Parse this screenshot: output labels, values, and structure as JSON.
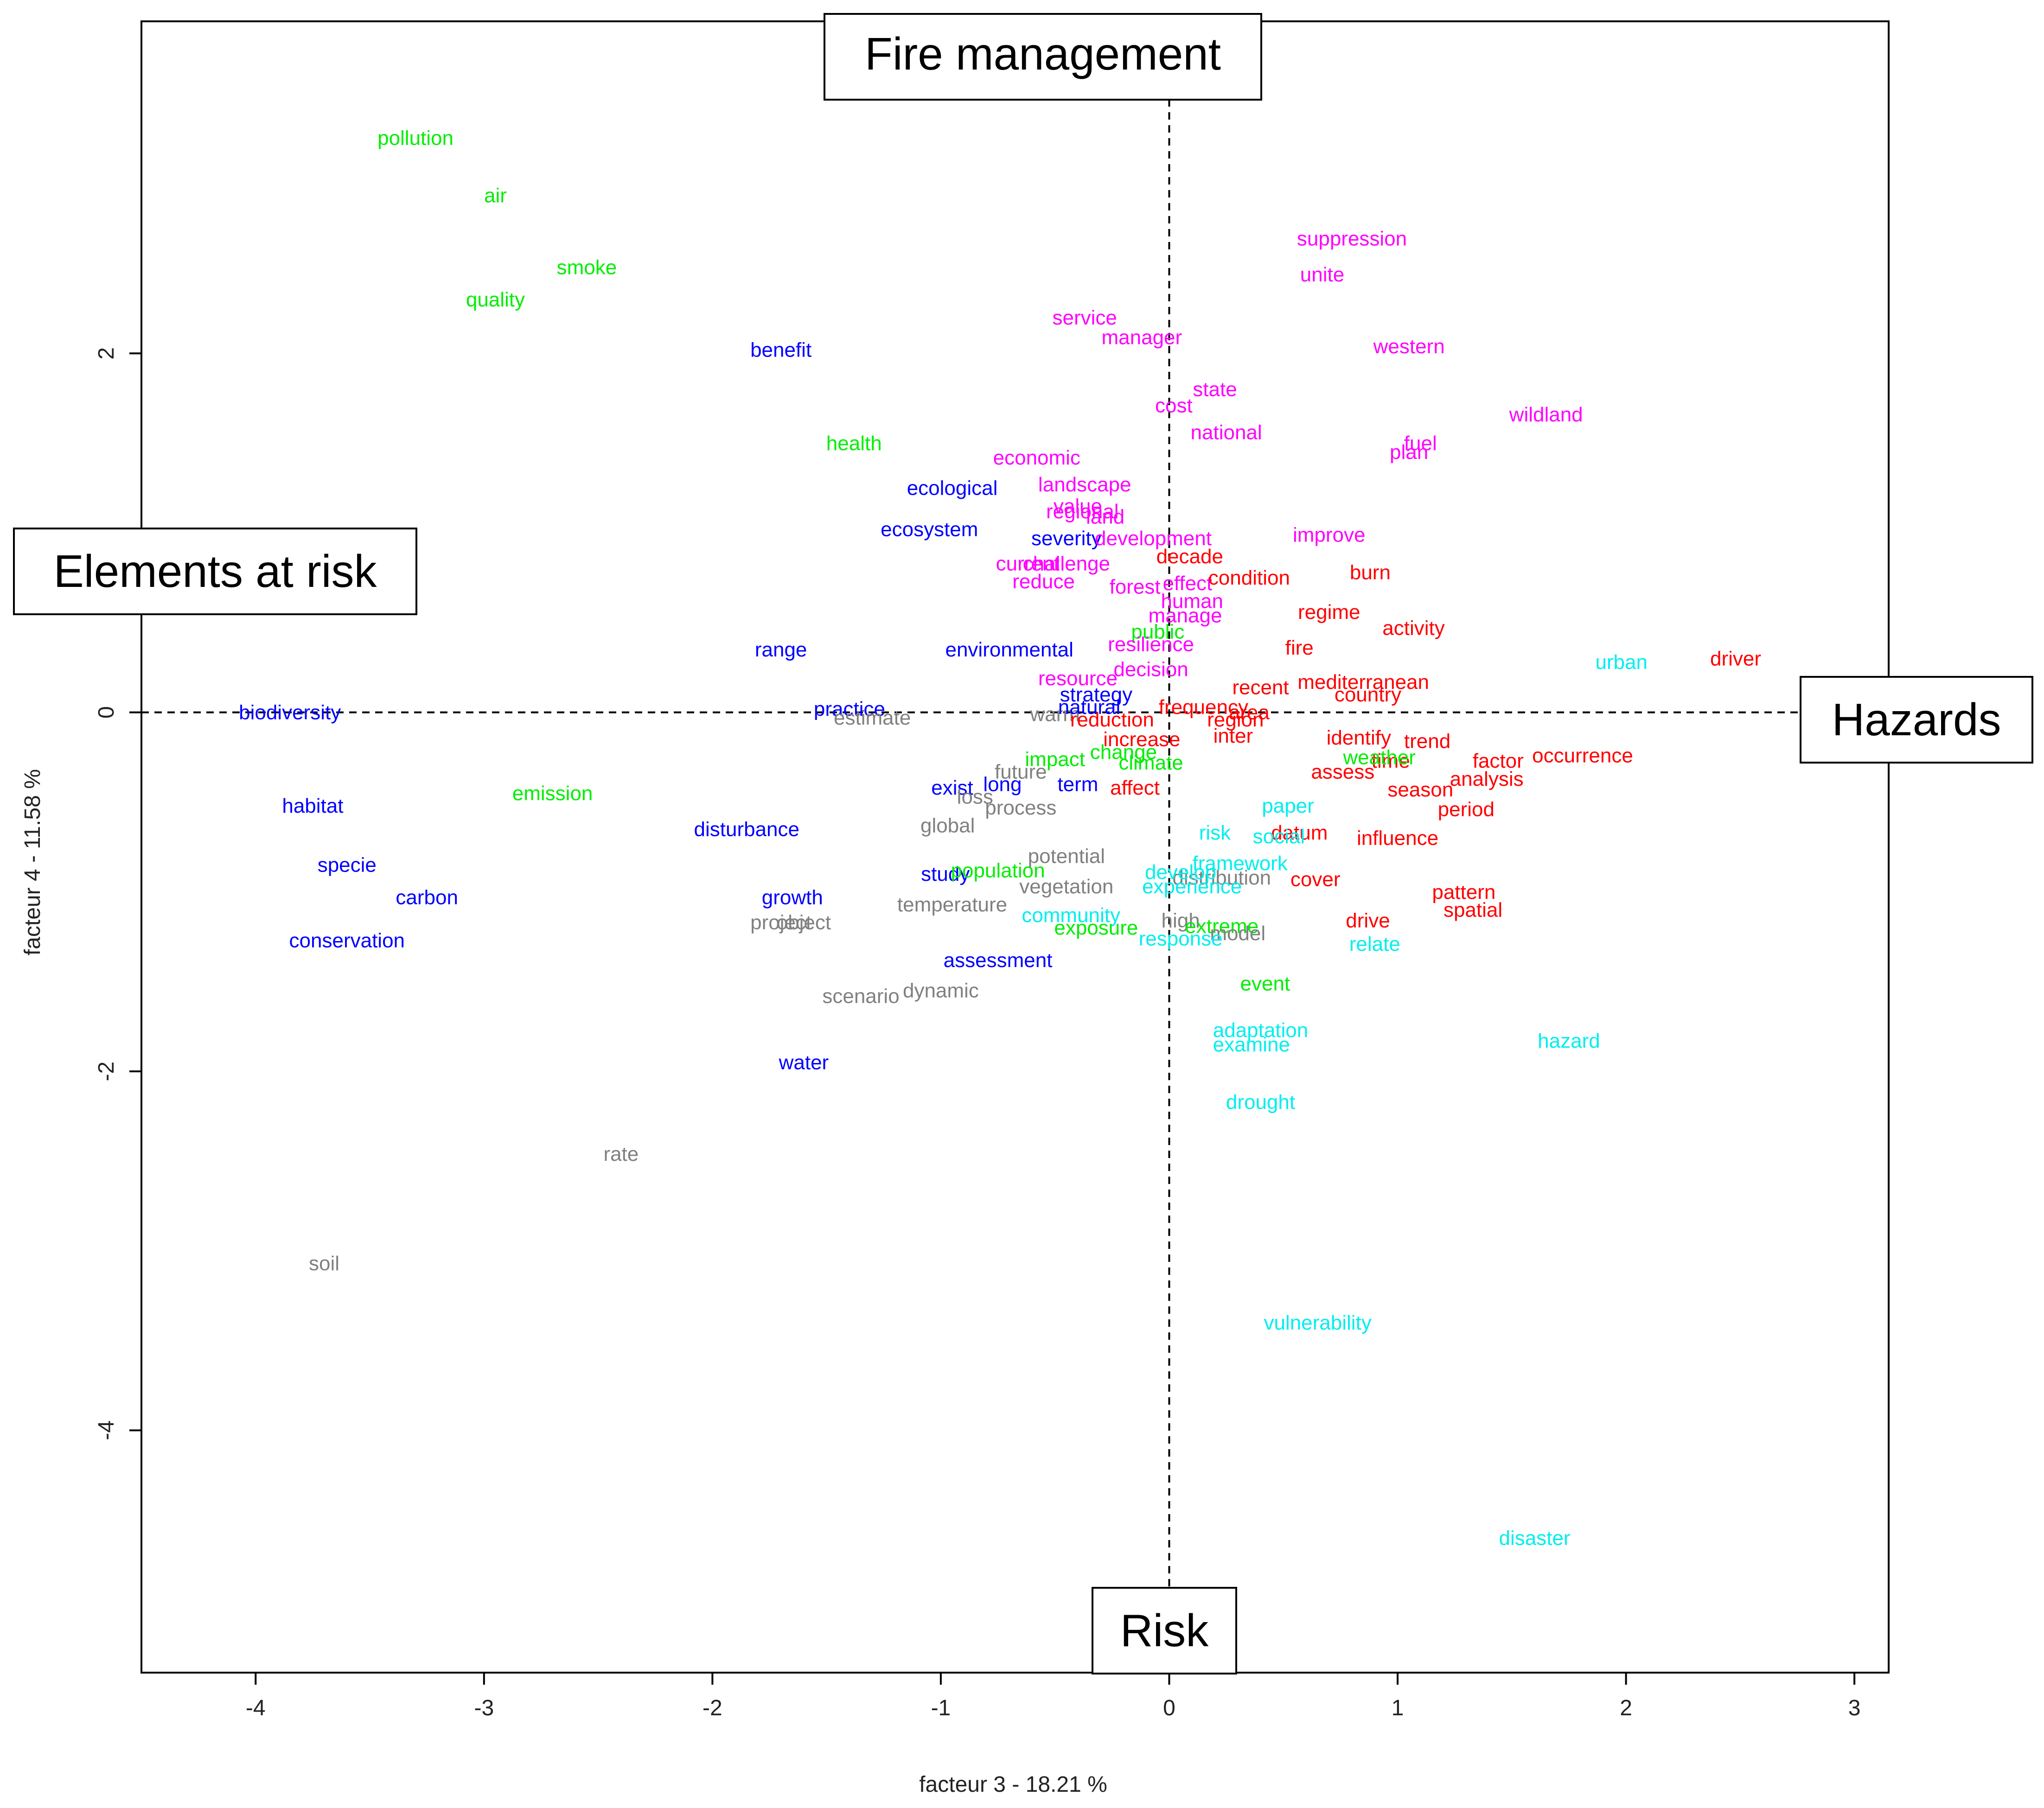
{
  "chart_data": {
    "type": "scatter",
    "title": "",
    "xlabel": "facteur  3  - 18.21 %",
    "ylabel": "facteur  4  - 11.58 %",
    "xlim": [
      -4.5,
      3.15
    ],
    "ylim": [
      -5.35,
      3.85
    ],
    "x_ticks": [
      -4,
      -3,
      -2,
      -1,
      0,
      1,
      2,
      3
    ],
    "y_ticks": [
      -4,
      -2,
      0,
      2
    ],
    "reference_lines": {
      "x": 0,
      "y": 0,
      "style": "dashed"
    },
    "annotations": {
      "top": "Fire management",
      "left": "Elements at risk",
      "right": "Hazards",
      "bottom": "Risk"
    },
    "group_colors": {
      "red": "#ff0000",
      "magenta": "#ff00ff",
      "blue": "#0000ff",
      "green": "#00ee00",
      "cyan": "#00eeee",
      "gray": "#808080"
    },
    "points": [
      {
        "t": "pollution",
        "x": -3.3,
        "y": 3.2,
        "g": "green"
      },
      {
        "t": "air",
        "x": -2.95,
        "y": 2.88,
        "g": "green"
      },
      {
        "t": "smoke",
        "x": -2.55,
        "y": 2.48,
        "g": "green"
      },
      {
        "t": "quality",
        "x": -2.95,
        "y": 2.3,
        "g": "green"
      },
      {
        "t": "benefit",
        "x": -1.7,
        "y": 2.02,
        "g": "blue"
      },
      {
        "t": "health",
        "x": -1.38,
        "y": 1.5,
        "g": "green"
      },
      {
        "t": "ecological",
        "x": -0.95,
        "y": 1.25,
        "g": "blue"
      },
      {
        "t": "ecosystem",
        "x": -1.05,
        "y": 1.02,
        "g": "blue"
      },
      {
        "t": "severity",
        "x": -0.45,
        "y": 0.97,
        "g": "blue"
      },
      {
        "t": "range",
        "x": -1.7,
        "y": 0.35,
        "g": "blue"
      },
      {
        "t": "environmental",
        "x": -0.7,
        "y": 0.35,
        "g": "blue"
      },
      {
        "t": "biodiversity",
        "x": -3.85,
        "y": 0.0,
        "g": "blue"
      },
      {
        "t": "practice",
        "x": -1.4,
        "y": 0.02,
        "g": "blue"
      },
      {
        "t": "estimate",
        "x": -1.3,
        "y": -0.03,
        "g": "gray"
      },
      {
        "t": "warm",
        "x": -0.5,
        "y": -0.01,
        "g": "gray"
      },
      {
        "t": "natural",
        "x": -0.35,
        "y": 0.03,
        "g": "blue"
      },
      {
        "t": "strategy",
        "x": -0.32,
        "y": 0.1,
        "g": "blue"
      },
      {
        "t": "habitat",
        "x": -3.75,
        "y": -0.52,
        "g": "blue"
      },
      {
        "t": "emission",
        "x": -2.7,
        "y": -0.45,
        "g": "green"
      },
      {
        "t": "disturbance",
        "x": -1.85,
        "y": -0.65,
        "g": "blue"
      },
      {
        "t": "exist",
        "x": -0.95,
        "y": -0.42,
        "g": "blue"
      },
      {
        "t": "long",
        "x": -0.73,
        "y": -0.4,
        "g": "blue"
      },
      {
        "t": "term",
        "x": -0.4,
        "y": -0.4,
        "g": "blue"
      },
      {
        "t": "loss",
        "x": -0.85,
        "y": -0.47,
        "g": "gray"
      },
      {
        "t": "future",
        "x": -0.65,
        "y": -0.33,
        "g": "gray"
      },
      {
        "t": "process",
        "x": -0.65,
        "y": -0.53,
        "g": "gray"
      },
      {
        "t": "global",
        "x": -0.97,
        "y": -0.63,
        "g": "gray"
      },
      {
        "t": "specie",
        "x": -3.6,
        "y": -0.85,
        "g": "blue"
      },
      {
        "t": "carbon",
        "x": -3.25,
        "y": -1.03,
        "g": "blue"
      },
      {
        "t": "conservation",
        "x": -3.6,
        "y": -1.27,
        "g": "blue"
      },
      {
        "t": "growth",
        "x": -1.65,
        "y": -1.03,
        "g": "blue"
      },
      {
        "t": "project",
        "x": -1.7,
        "y": -1.17,
        "g": "gray"
      },
      {
        "t": "object",
        "x": -1.6,
        "y": -1.17,
        "g": "gray"
      },
      {
        "t": "study",
        "x": -0.98,
        "y": -0.9,
        "g": "blue"
      },
      {
        "t": "population",
        "x": -0.75,
        "y": -0.88,
        "g": "green"
      },
      {
        "t": "temperature",
        "x": -0.95,
        "y": -1.07,
        "g": "gray"
      },
      {
        "t": "potential",
        "x": -0.45,
        "y": -0.8,
        "g": "gray"
      },
      {
        "t": "vegetation",
        "x": -0.45,
        "y": -0.97,
        "g": "gray"
      },
      {
        "t": "assessment",
        "x": -0.75,
        "y": -1.38,
        "g": "blue"
      },
      {
        "t": "scenario",
        "x": -1.35,
        "y": -1.58,
        "g": "gray"
      },
      {
        "t": "dynamic",
        "x": -1.0,
        "y": -1.55,
        "g": "gray"
      },
      {
        "t": "water",
        "x": -1.6,
        "y": -1.95,
        "g": "blue"
      },
      {
        "t": "rate",
        "x": -2.4,
        "y": -2.46,
        "g": "gray"
      },
      {
        "t": "soil",
        "x": -3.7,
        "y": -3.07,
        "g": "gray"
      },
      {
        "t": "service",
        "x": -0.37,
        "y": 2.2,
        "g": "magenta"
      },
      {
        "t": "manager",
        "x": -0.12,
        "y": 2.09,
        "g": "magenta"
      },
      {
        "t": "state",
        "x": 0.2,
        "y": 1.8,
        "g": "magenta"
      },
      {
        "t": "cost",
        "x": 0.02,
        "y": 1.71,
        "g": "magenta"
      },
      {
        "t": "national",
        "x": 0.25,
        "y": 1.56,
        "g": "magenta"
      },
      {
        "t": "economic",
        "x": -0.58,
        "y": 1.42,
        "g": "magenta"
      },
      {
        "t": "landscape",
        "x": -0.37,
        "y": 1.27,
        "g": "magenta"
      },
      {
        "t": "value",
        "x": -0.4,
        "y": 1.15,
        "g": "magenta"
      },
      {
        "t": "regional",
        "x": -0.38,
        "y": 1.12,
        "g": "magenta"
      },
      {
        "t": "land",
        "x": -0.28,
        "y": 1.09,
        "g": "magenta"
      },
      {
        "t": "development",
        "x": -0.07,
        "y": 0.97,
        "g": "magenta"
      },
      {
        "t": "current",
        "x": -0.62,
        "y": 0.83,
        "g": "magenta"
      },
      {
        "t": "challenge",
        "x": -0.45,
        "y": 0.83,
        "g": "magenta"
      },
      {
        "t": "reduce",
        "x": -0.55,
        "y": 0.73,
        "g": "magenta"
      },
      {
        "t": "forest",
        "x": -0.15,
        "y": 0.7,
        "g": "magenta"
      },
      {
        "t": "effect",
        "x": 0.08,
        "y": 0.72,
        "g": "magenta"
      },
      {
        "t": "human",
        "x": 0.1,
        "y": 0.62,
        "g": "magenta"
      },
      {
        "t": "manage",
        "x": 0.07,
        "y": 0.54,
        "g": "magenta"
      },
      {
        "t": "public",
        "x": -0.05,
        "y": 0.45,
        "g": "green"
      },
      {
        "t": "resilience",
        "x": -0.08,
        "y": 0.38,
        "g": "magenta"
      },
      {
        "t": "decision",
        "x": -0.08,
        "y": 0.24,
        "g": "magenta"
      },
      {
        "t": "resource",
        "x": -0.4,
        "y": 0.19,
        "g": "magenta"
      },
      {
        "t": "suppression",
        "x": 0.8,
        "y": 2.64,
        "g": "magenta"
      },
      {
        "t": "unite",
        "x": 0.67,
        "y": 2.44,
        "g": "magenta"
      },
      {
        "t": "western",
        "x": 1.05,
        "y": 2.04,
        "g": "magenta"
      },
      {
        "t": "wildland",
        "x": 1.65,
        "y": 1.66,
        "g": "magenta"
      },
      {
        "t": "fuel",
        "x": 1.1,
        "y": 1.5,
        "g": "magenta"
      },
      {
        "t": "plan",
        "x": 1.05,
        "y": 1.45,
        "g": "magenta"
      },
      {
        "t": "improve",
        "x": 0.7,
        "y": 0.99,
        "g": "magenta"
      },
      {
        "t": "decade",
        "x": 0.09,
        "y": 0.87,
        "g": "red"
      },
      {
        "t": "condition",
        "x": 0.35,
        "y": 0.75,
        "g": "red"
      },
      {
        "t": "burn",
        "x": 0.88,
        "y": 0.78,
        "g": "red"
      },
      {
        "t": "regime",
        "x": 0.7,
        "y": 0.56,
        "g": "red"
      },
      {
        "t": "activity",
        "x": 1.07,
        "y": 0.47,
        "g": "red"
      },
      {
        "t": "fire",
        "x": 0.57,
        "y": 0.36,
        "g": "red"
      },
      {
        "t": "recent",
        "x": 0.4,
        "y": 0.14,
        "g": "red"
      },
      {
        "t": "mediterranean",
        "x": 0.85,
        "y": 0.17,
        "g": "red"
      },
      {
        "t": "country",
        "x": 0.87,
        "y": 0.1,
        "g": "red"
      },
      {
        "t": "frequency",
        "x": 0.15,
        "y": 0.03,
        "g": "red"
      },
      {
        "t": "area",
        "x": 0.35,
        "y": 0.0,
        "g": "red"
      },
      {
        "t": "region",
        "x": 0.29,
        "y": -0.04,
        "g": "red"
      },
      {
        "t": "inter",
        "x": 0.28,
        "y": -0.13,
        "g": "red"
      },
      {
        "t": "reduction",
        "x": -0.25,
        "y": -0.04,
        "g": "red"
      },
      {
        "t": "increase",
        "x": -0.12,
        "y": -0.15,
        "g": "red"
      },
      {
        "t": "affect",
        "x": -0.15,
        "y": -0.42,
        "g": "red"
      },
      {
        "t": "identify",
        "x": 0.83,
        "y": -0.14,
        "g": "red"
      },
      {
        "t": "trend",
        "x": 1.13,
        "y": -0.16,
        "g": "red"
      },
      {
        "t": "time",
        "x": 0.97,
        "y": -0.27,
        "g": "red"
      },
      {
        "t": "weather",
        "x": 0.92,
        "y": -0.25,
        "g": "green"
      },
      {
        "t": "assess",
        "x": 0.76,
        "y": -0.33,
        "g": "red"
      },
      {
        "t": "factor",
        "x": 1.44,
        "y": -0.27,
        "g": "red"
      },
      {
        "t": "analysis",
        "x": 1.39,
        "y": -0.37,
        "g": "red"
      },
      {
        "t": "occurrence",
        "x": 1.81,
        "y": -0.24,
        "g": "red"
      },
      {
        "t": "season",
        "x": 1.1,
        "y": -0.43,
        "g": "red"
      },
      {
        "t": "period",
        "x": 1.3,
        "y": -0.54,
        "g": "red"
      },
      {
        "t": "datum",
        "x": 0.57,
        "y": -0.67,
        "g": "red"
      },
      {
        "t": "influence",
        "x": 1.0,
        "y": -0.7,
        "g": "red"
      },
      {
        "t": "distribution",
        "x": 0.23,
        "y": -0.92,
        "g": "gray"
      },
      {
        "t": "cover",
        "x": 0.64,
        "y": -0.93,
        "g": "red"
      },
      {
        "t": "pattern",
        "x": 1.29,
        "y": -1.0,
        "g": "red"
      },
      {
        "t": "spatial",
        "x": 1.33,
        "y": -1.1,
        "g": "red"
      },
      {
        "t": "drive",
        "x": 0.87,
        "y": -1.16,
        "g": "red"
      },
      {
        "t": "driver",
        "x": 2.48,
        "y": 0.3,
        "g": "red"
      },
      {
        "t": "urban",
        "x": 1.98,
        "y": 0.28,
        "g": "cyan"
      },
      {
        "t": "climate",
        "x": -0.08,
        "y": -0.28,
        "g": "green"
      },
      {
        "t": "change",
        "x": -0.2,
        "y": -0.22,
        "g": "green"
      },
      {
        "t": "impact",
        "x": -0.5,
        "y": -0.26,
        "g": "green"
      },
      {
        "t": "paper",
        "x": 0.52,
        "y": -0.52,
        "g": "cyan"
      },
      {
        "t": "risk",
        "x": 0.2,
        "y": -0.67,
        "g": "cyan"
      },
      {
        "t": "social",
        "x": 0.48,
        "y": -0.69,
        "g": "cyan"
      },
      {
        "t": "framework",
        "x": 0.31,
        "y": -0.84,
        "g": "cyan"
      },
      {
        "t": "develop",
        "x": 0.05,
        "y": -0.89,
        "g": "cyan"
      },
      {
        "t": "experience",
        "x": 0.1,
        "y": -0.97,
        "g": "cyan"
      },
      {
        "t": "community",
        "x": -0.43,
        "y": -1.13,
        "g": "cyan"
      },
      {
        "t": "exposure",
        "x": -0.32,
        "y": -1.2,
        "g": "green"
      },
      {
        "t": "high",
        "x": 0.05,
        "y": -1.16,
        "g": "gray"
      },
      {
        "t": "extreme",
        "x": 0.23,
        "y": -1.19,
        "g": "green"
      },
      {
        "t": "model",
        "x": 0.3,
        "y": -1.23,
        "g": "gray"
      },
      {
        "t": "response",
        "x": 0.05,
        "y": -1.26,
        "g": "cyan"
      },
      {
        "t": "relate",
        "x": 0.9,
        "y": -1.29,
        "g": "cyan"
      },
      {
        "t": "event",
        "x": 0.42,
        "y": -1.51,
        "g": "green"
      },
      {
        "t": "adaptation",
        "x": 0.4,
        "y": -1.77,
        "g": "cyan"
      },
      {
        "t": "examine",
        "x": 0.36,
        "y": -1.85,
        "g": "cyan"
      },
      {
        "t": "hazard",
        "x": 1.75,
        "y": -1.83,
        "g": "cyan"
      },
      {
        "t": "drought",
        "x": 0.4,
        "y": -2.17,
        "g": "cyan"
      },
      {
        "t": "vulnerability",
        "x": 0.65,
        "y": -3.4,
        "g": "cyan"
      },
      {
        "t": "disaster",
        "x": 1.6,
        "y": -4.6,
        "g": "cyan"
      }
    ]
  }
}
